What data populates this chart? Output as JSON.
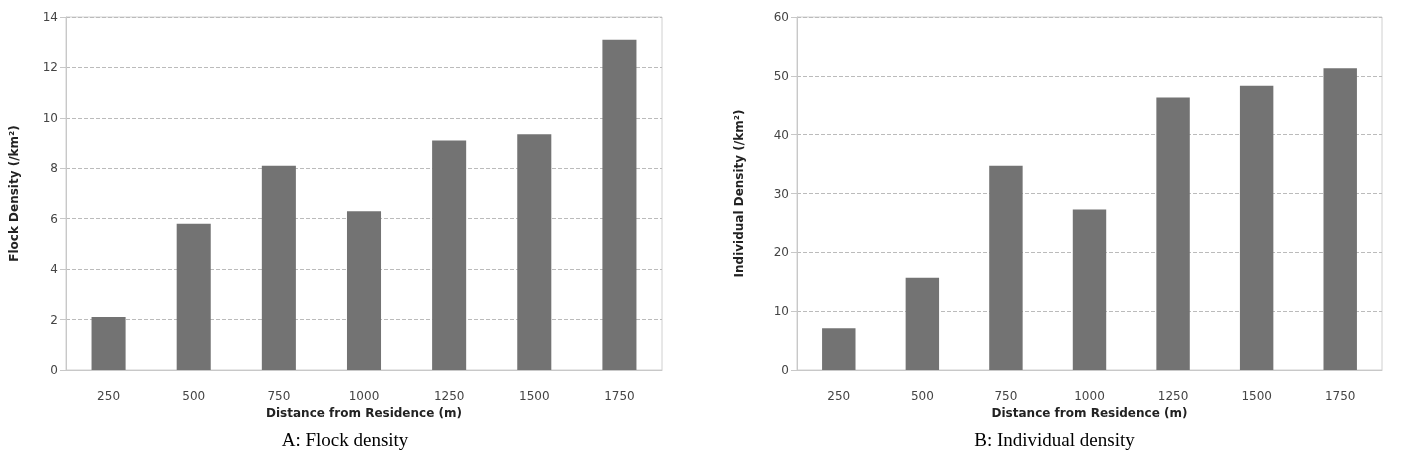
{
  "chart_data": [
    {
      "type": "bar",
      "title": "A: Flock density",
      "xlabel": "Distance from Residence (m)",
      "ylabel": "Flock Density (/km²)",
      "categories": [
        "250",
        "500",
        "750",
        "1000",
        "1250",
        "1500",
        "1750"
      ],
      "values": [
        2.1,
        5.8,
        8.1,
        6.3,
        9.1,
        9.35,
        13.1
      ],
      "color": "#737373",
      "ylim": [
        0,
        14
      ],
      "yticks": [
        0,
        2,
        4,
        6,
        8,
        10,
        12,
        14
      ],
      "grid": "y"
    },
    {
      "type": "bar",
      "title": "B: Individual density",
      "xlabel": "Distance from Residence (m)",
      "ylabel": "Individual Density (/km²)",
      "categories": [
        "250",
        "500",
        "750",
        "1000",
        "1250",
        "1500",
        "1750"
      ],
      "values": [
        7.1,
        15.7,
        34.7,
        27.3,
        46.3,
        48.3,
        51.3
      ],
      "color": "#737373",
      "ylim": [
        0,
        60
      ],
      "yticks": [
        0,
        10,
        20,
        30,
        40,
        50,
        60
      ],
      "grid": "y"
    }
  ]
}
